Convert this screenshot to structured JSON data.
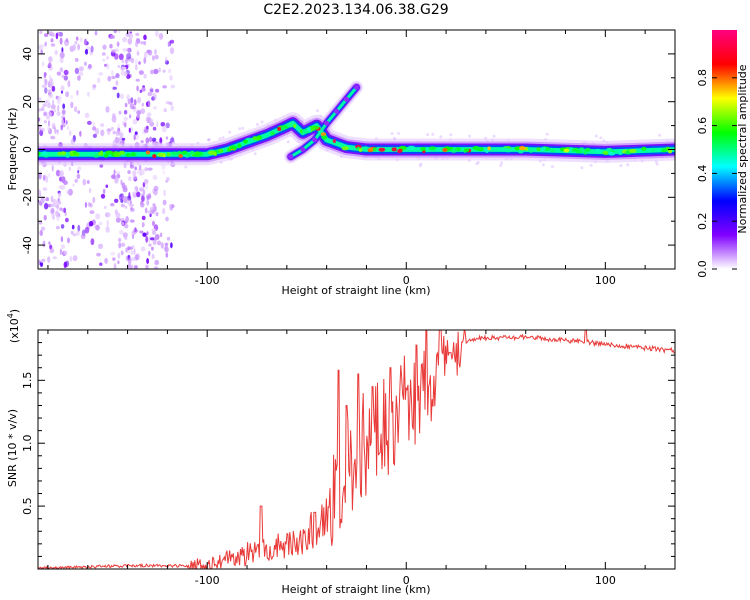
{
  "title": "C2E2.2023.134.06.38.G29",
  "chart_data": [
    {
      "type": "heatmap",
      "name": "spectrogram",
      "xlabel": "Height of straight line (km)",
      "ylabel": "Frequency (Hz)",
      "xlim": [
        -185,
        135
      ],
      "ylim": [
        -50,
        50
      ],
      "xticks": [
        -100,
        0,
        100
      ],
      "yticks": [
        -40,
        -20,
        0,
        20,
        40
      ],
      "colorbar": {
        "label": "Normalized spectral amplitude",
        "range": [
          0,
          1
        ],
        "ticks": [
          0.0,
          0.2,
          0.4,
          0.6,
          0.8
        ],
        "tick_labels": [
          "0.0",
          "0.2",
          "0.4",
          "0.6",
          "0.8"
        ],
        "colors": [
          "#ffffff",
          "#8000ff",
          "#0000ff",
          "#00ffff",
          "#00ff00",
          "#ffff00",
          "#ff0000",
          "#ff0080"
        ]
      },
      "ridge": [
        {
          "x": -185,
          "y": -2
        },
        {
          "x": -160,
          "y": -2
        },
        {
          "x": -140,
          "y": -2
        },
        {
          "x": -120,
          "y": -2
        },
        {
          "x": -100,
          "y": -2
        },
        {
          "x": -90,
          "y": 0
        },
        {
          "x": -80,
          "y": 3
        },
        {
          "x": -70,
          "y": 6
        },
        {
          "x": -62,
          "y": 9
        },
        {
          "x": -57,
          "y": 11
        },
        {
          "x": -52,
          "y": 7
        },
        {
          "x": -45,
          "y": 10
        },
        {
          "x": -40,
          "y": 4
        },
        {
          "x": -30,
          "y": 1
        },
        {
          "x": -20,
          "y": 0
        },
        {
          "x": 0,
          "y": 0
        },
        {
          "x": 20,
          "y": 0
        },
        {
          "x": 60,
          "y": 0
        },
        {
          "x": 100,
          "y": -1
        },
        {
          "x": 135,
          "y": 0
        }
      ],
      "side_branch": [
        {
          "x": -58,
          "y": -3
        },
        {
          "x": -52,
          "y": 0
        },
        {
          "x": -46,
          "y": 4
        },
        {
          "x": -40,
          "y": 11
        },
        {
          "x": -35,
          "y": 16
        },
        {
          "x": -30,
          "y": 21
        },
        {
          "x": -25,
          "y": 26
        }
      ]
    },
    {
      "type": "line",
      "name": "snr",
      "xlabel": "Height of straight line (km)",
      "ylabel": "SNR (10 * v/v)",
      "y_multiplier": "(x10",
      "y_multiplier_exp": "4",
      "y_multiplier_close": ")",
      "xlim": [
        -185,
        135
      ],
      "ylim": [
        0,
        1.9
      ],
      "xticks": [
        -100,
        0,
        100
      ],
      "yticks": [
        0.5,
        1.0,
        1.5
      ],
      "ytick_labels": [
        "0.5",
        "1.0",
        "1.5"
      ],
      "color": "#e83a38",
      "envelope": [
        {
          "x": -185,
          "y": 0.01
        },
        {
          "x": -140,
          "y": 0.03
        },
        {
          "x": -110,
          "y": 0.03
        },
        {
          "x": -90,
          "y": 0.1
        },
        {
          "x": -70,
          "y": 0.2
        },
        {
          "x": -55,
          "y": 0.28
        },
        {
          "x": -45,
          "y": 0.38
        },
        {
          "x": -38,
          "y": 0.55
        },
        {
          "x": -30,
          "y": 0.95
        },
        {
          "x": -22,
          "y": 1.12
        },
        {
          "x": -14,
          "y": 1.22
        },
        {
          "x": -5,
          "y": 1.35
        },
        {
          "x": 5,
          "y": 1.48
        },
        {
          "x": 15,
          "y": 1.62
        },
        {
          "x": 25,
          "y": 1.76
        },
        {
          "x": 35,
          "y": 1.84
        },
        {
          "x": 60,
          "y": 1.85
        },
        {
          "x": 90,
          "y": 1.81
        },
        {
          "x": 135,
          "y": 1.74
        }
      ],
      "spikes": [
        {
          "x": -73,
          "y": 0.5
        },
        {
          "x": -46,
          "y": 0.45
        },
        {
          "x": -34,
          "y": 1.58
        },
        {
          "x": -30,
          "y": 1.3
        },
        {
          "x": -24,
          "y": 1.55
        },
        {
          "x": -17,
          "y": 1.45
        },
        {
          "x": -8,
          "y": 1.6
        },
        {
          "x": 5,
          "y": 1.78
        },
        {
          "x": 10,
          "y": 1.9
        },
        {
          "x": 17,
          "y": 1.9
        },
        {
          "x": 22,
          "y": 1.72
        },
        {
          "x": 90,
          "y": 1.92
        }
      ]
    }
  ]
}
